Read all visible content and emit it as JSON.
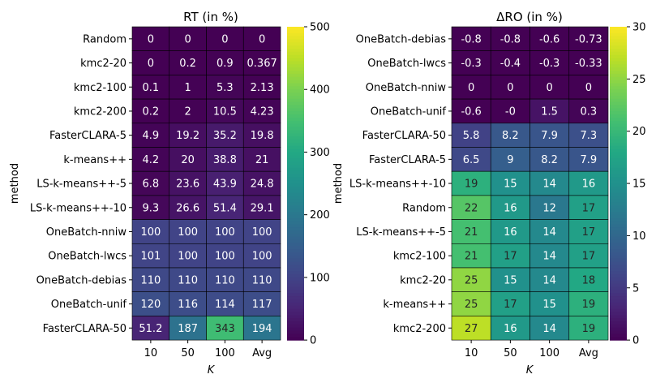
{
  "chart_data": [
    {
      "type": "heatmap",
      "title": "RT (in %)",
      "xlabel": "K",
      "ylabel": "method",
      "columns": [
        "10",
        "50",
        "100",
        "Avg"
      ],
      "rows": [
        "Random",
        "kmc2-20",
        "kmc2-100",
        "kmc2-200",
        "FasterCLARA-5",
        "k-means++",
        "LS-k-means++-5",
        "LS-k-means++-10",
        "OneBatch-nniw",
        "OneBatch-lwcs",
        "OneBatch-debias",
        "OneBatch-unif",
        "FasterCLARA-50"
      ],
      "values": [
        [
          0,
          0,
          0,
          0
        ],
        [
          0,
          0.2,
          0.9,
          0.367
        ],
        [
          0.1,
          1,
          5.3,
          2.13
        ],
        [
          0.2,
          2,
          10.5,
          4.23
        ],
        [
          4.9,
          19.2,
          35.2,
          19.8
        ],
        [
          4.2,
          20,
          38.8,
          21
        ],
        [
          6.8,
          23.6,
          43.9,
          24.8
        ],
        [
          9.3,
          26.6,
          51.4,
          29.1
        ],
        [
          100,
          100,
          100,
          100
        ],
        [
          101,
          100,
          100,
          100
        ],
        [
          110,
          110,
          110,
          110
        ],
        [
          120,
          116,
          114,
          117
        ],
        [
          51.2,
          187,
          343,
          194
        ]
      ],
      "labels": [
        [
          "0",
          "0",
          "0",
          "0"
        ],
        [
          "0",
          "0.2",
          "0.9",
          "0.367"
        ],
        [
          "0.1",
          "1",
          "5.3",
          "2.13"
        ],
        [
          "0.2",
          "2",
          "10.5",
          "4.23"
        ],
        [
          "4.9",
          "19.2",
          "35.2",
          "19.8"
        ],
        [
          "4.2",
          "20",
          "38.8",
          "21"
        ],
        [
          "6.8",
          "23.6",
          "43.9",
          "24.8"
        ],
        [
          "9.3",
          "26.6",
          "51.4",
          "29.1"
        ],
        [
          "100",
          "100",
          "100",
          "100"
        ],
        [
          "101",
          "100",
          "100",
          "100"
        ],
        [
          "110",
          "110",
          "110",
          "110"
        ],
        [
          "120",
          "116",
          "114",
          "117"
        ],
        [
          "51.2",
          "187",
          "343",
          "194"
        ]
      ],
      "colorbar": {
        "min": 0,
        "max": 500,
        "ticks": [
          0,
          100,
          200,
          300,
          400,
          500
        ],
        "colormap": "viridis"
      }
    },
    {
      "type": "heatmap",
      "title": "ΔRO (in %)",
      "xlabel": "K",
      "ylabel": "method",
      "columns": [
        "10",
        "50",
        "100",
        "Avg"
      ],
      "rows": [
        "OneBatch-debias",
        "OneBatch-lwcs",
        "OneBatch-nniw",
        "OneBatch-unif",
        "FasterCLARA-50",
        "FasterCLARA-5",
        "LS-k-means++-10",
        "Random",
        "LS-k-means++-5",
        "kmc2-100",
        "kmc2-20",
        "k-means++",
        "kmc2-200"
      ],
      "values": [
        [
          -0.8,
          -0.8,
          -0.6,
          -0.73
        ],
        [
          -0.3,
          -0.4,
          -0.3,
          -0.33
        ],
        [
          0,
          0,
          0,
          0
        ],
        [
          -0.6,
          -0.0,
          1.5,
          0.3
        ],
        [
          5.8,
          8.2,
          7.9,
          7.3
        ],
        [
          6.5,
          9,
          8.2,
          7.9
        ],
        [
          19,
          15,
          14,
          16
        ],
        [
          22,
          16,
          12,
          17
        ],
        [
          21,
          16,
          14,
          17
        ],
        [
          21,
          17,
          14,
          17
        ],
        [
          25,
          15,
          14,
          18
        ],
        [
          25,
          17,
          15,
          19
        ],
        [
          27,
          16,
          14,
          19
        ]
      ],
      "labels": [
        [
          "-0.8",
          "-0.8",
          "-0.6",
          "-0.73"
        ],
        [
          "-0.3",
          "-0.4",
          "-0.3",
          "-0.33"
        ],
        [
          "0",
          "0",
          "0",
          "0"
        ],
        [
          "-0.6",
          "-0",
          "1.5",
          "0.3"
        ],
        [
          "5.8",
          "8.2",
          "7.9",
          "7.3"
        ],
        [
          "6.5",
          "9",
          "8.2",
          "7.9"
        ],
        [
          "19",
          "15",
          "14",
          "16"
        ],
        [
          "22",
          "16",
          "12",
          "17"
        ],
        [
          "21",
          "16",
          "14",
          "17"
        ],
        [
          "21",
          "17",
          "14",
          "17"
        ],
        [
          "25",
          "15",
          "14",
          "18"
        ],
        [
          "25",
          "17",
          "15",
          "19"
        ],
        [
          "27",
          "16",
          "14",
          "19"
        ]
      ],
      "colorbar": {
        "min": 0,
        "max": 30,
        "ticks": [
          0,
          5,
          10,
          15,
          20,
          25,
          30
        ],
        "colormap": "viridis"
      }
    }
  ]
}
